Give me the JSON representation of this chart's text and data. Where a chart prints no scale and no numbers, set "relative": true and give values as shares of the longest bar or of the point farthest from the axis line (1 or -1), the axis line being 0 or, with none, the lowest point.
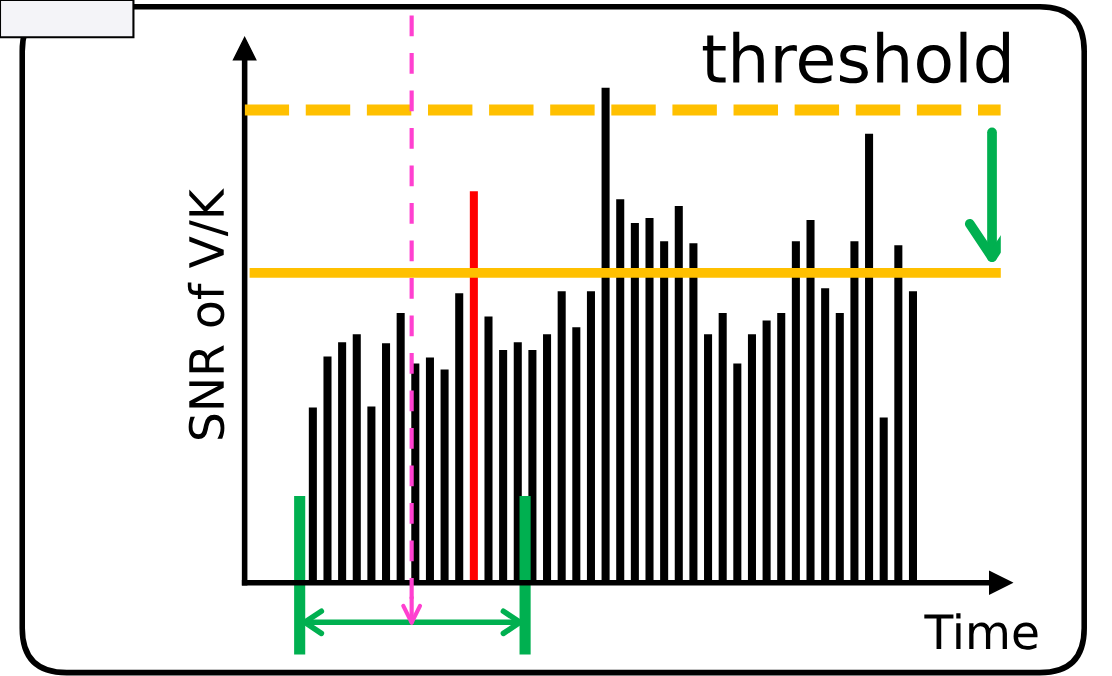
{
  "chart_data": {
    "type": "bar",
    "relative": true,
    "ylabel": "SNR of V/K",
    "xlabel": "Time",
    "categories": [
      null,
      null,
      null,
      null,
      null,
      null,
      null,
      null,
      null,
      null,
      null,
      null,
      null,
      null,
      null,
      null,
      null,
      null,
      null,
      null,
      null,
      null,
      null,
      null,
      null,
      null,
      null,
      null,
      null,
      null,
      null,
      null,
      null,
      null,
      null,
      null,
      null,
      null,
      null,
      null,
      null,
      null
    ],
    "values": [
      0.354,
      0.457,
      0.486,
      0.502,
      0.356,
      0.484,
      0.545,
      0.443,
      0.455,
      0.431,
      0.585,
      0.791,
      0.538,
      0.47,
      0.486,
      0.47,
      0.502,
      0.589,
      0.516,
      0.589,
      1.0,
      0.775,
      0.727,
      0.737,
      0.69,
      0.761,
      0.686,
      0.502,
      0.545,
      0.443,
      0.502,
      0.53,
      0.545,
      0.69,
      0.733,
      0.595,
      0.545,
      0.69,
      0.907,
      0.334,
      0.682,
      0.589
    ],
    "colors": [
      "#000000",
      "#000000",
      "#000000",
      "#000000",
      "#000000",
      "#000000",
      "#000000",
      "#000000",
      "#000000",
      "#000000",
      "#000000",
      "#ff0000",
      "#000000",
      "#000000",
      "#000000",
      "#000000",
      "#000000",
      "#000000",
      "#000000",
      "#000000",
      "#000000",
      "#000000",
      "#000000",
      "#000000",
      "#000000",
      "#000000",
      "#000000",
      "#000000",
      "#000000",
      "#000000",
      "#000000",
      "#000000",
      "#000000",
      "#000000",
      "#000000",
      "#000000",
      "#000000",
      "#000000",
      "#000000",
      "#000000",
      "#000000",
      "#000000"
    ],
    "ref_lines": [
      {
        "axis": "y",
        "value": 0.626,
        "color": "#ffc000",
        "line_style": "solid"
      },
      {
        "axis": "y",
        "value": 0.955,
        "color": "#ffc000",
        "line_style": "dashed"
      }
    ],
    "annotations": [
      "threshold"
    ],
    "grid": false
  }
}
